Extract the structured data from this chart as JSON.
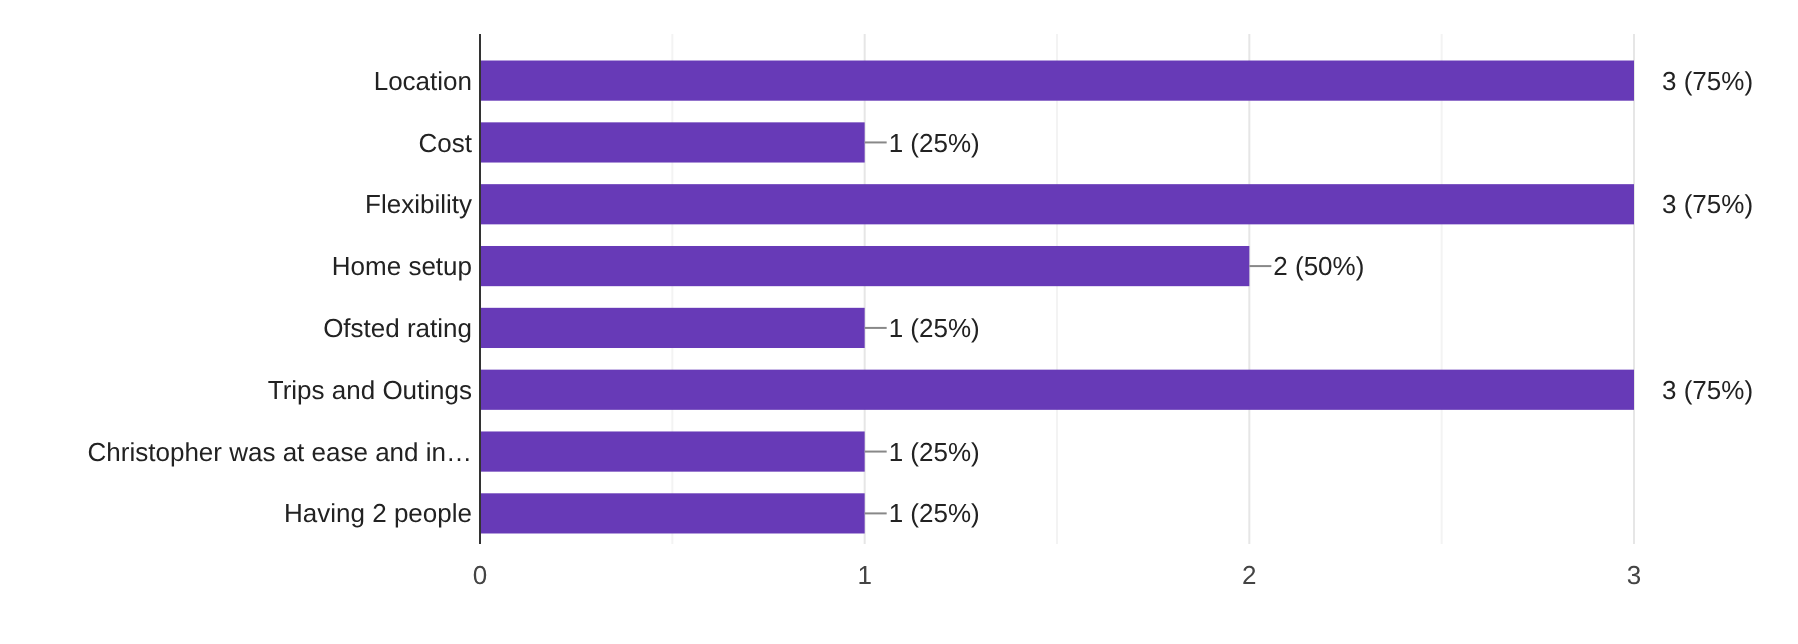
{
  "chart_data": {
    "type": "bar",
    "orientation": "horizontal",
    "categories": [
      "Location",
      "Cost",
      "Flexibility",
      "Home setup",
      "Ofsted rating",
      "Trips and Outings",
      "Christopher was at ease and in…",
      "Having 2 people"
    ],
    "values": [
      3,
      1,
      3,
      2,
      1,
      3,
      1,
      1
    ],
    "value_labels": [
      "3 (75%)",
      "1 (25%)",
      "3 (75%)",
      "2 (50%)",
      "1 (25%)",
      "3 (75%)",
      "1 (25%)",
      "1 (25%)"
    ],
    "color": "#673ab7",
    "xlim": [
      0,
      3
    ],
    "xticks": [
      0,
      {
        "value": 0.5,
        "label": null
      },
      1,
      {
        "value": 1.5,
        "label": null
      },
      2,
      {
        "value": 2.5,
        "label": null
      },
      3
    ],
    "grid": "x"
  }
}
